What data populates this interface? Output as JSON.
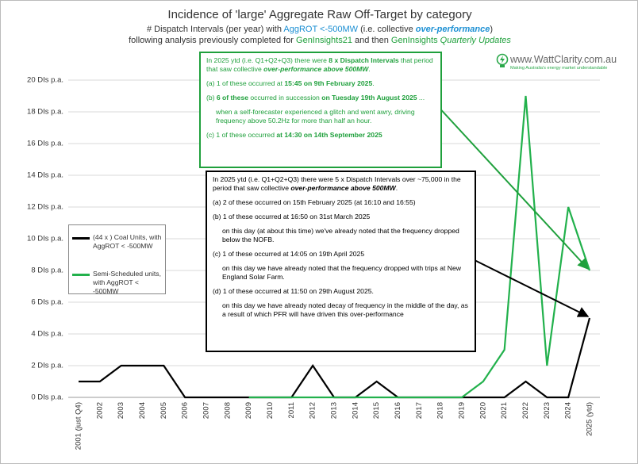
{
  "chart_data": {
    "type": "line",
    "title": "Incidence of 'large' Aggregate Raw Off-Target by category",
    "subtitle_lines": [
      [
        {
          "text": "# Dispatch Intervals (per year) with "
        },
        {
          "text": "AggROT <-500MW",
          "color": "#1b8fd3"
        },
        {
          "text": " (i.e. collective "
        },
        {
          "text": "over-performance",
          "color": "#1b8fd3",
          "bold": true,
          "italic": true
        },
        {
          "text": ")"
        }
      ],
      [
        {
          "text": "following analysis previously completed for "
        },
        {
          "text": "GenInsights21",
          "color": "#1fa03c"
        },
        {
          "text": " and then "
        },
        {
          "text": "GenInsights ",
          "color": "#1fa03c"
        },
        {
          "text": "Quarterly Updates",
          "color": "#1fa03c",
          "italic": true
        }
      ]
    ],
    "categories": [
      "2001 (just Q4)",
      "2002",
      "2003",
      "2004",
      "2005",
      "2006",
      "2007",
      "2008",
      "2009",
      "2010",
      "2011",
      "2012",
      "2013",
      "2014",
      "2015",
      "2016",
      "2017",
      "2018",
      "2019",
      "2020",
      "2021",
      "2022",
      "2023",
      "2024",
      "2025 (ytd)"
    ],
    "series": [
      {
        "name": "(44 x ) Coal Units, with AggROT < -500MW",
        "color": "#000000",
        "values": [
          1,
          1,
          2,
          2,
          2,
          0,
          0,
          0,
          0,
          0,
          0,
          2,
          0,
          0,
          1,
          0,
          0,
          0,
          0,
          0,
          0,
          1,
          0,
          0,
          5
        ]
      },
      {
        "name": "Semi-Scheduled units, with AggROT < -500MW",
        "color": "#22b14c",
        "values": [
          null,
          null,
          null,
          null,
          null,
          null,
          null,
          null,
          0,
          0,
          0,
          0,
          0,
          0,
          0,
          0,
          0,
          0,
          0,
          1,
          3,
          19,
          2,
          12,
          8
        ]
      }
    ],
    "ylim": [
      0,
      20
    ],
    "yticks": [
      {
        "value": 0,
        "label": "0 DIs p.a."
      },
      {
        "value": 2,
        "label": "2 DIs p.a."
      },
      {
        "value": 4,
        "label": "4 DIs p.a."
      },
      {
        "value": 6,
        "label": "6 DIs p.a."
      },
      {
        "value": 8,
        "label": "8 DIs p.a."
      },
      {
        "value": 10,
        "label": "10 DIs p.a."
      },
      {
        "value": 12,
        "label": "12 DIs p.a."
      },
      {
        "value": 14,
        "label": "14 DIs p.a."
      },
      {
        "value": 16,
        "label": "16 DIs p.a."
      },
      {
        "value": 18,
        "label": "18 DIs p.a."
      },
      {
        "value": 20,
        "label": "20 DIs p.a."
      }
    ],
    "grid": true,
    "legend_position": "left",
    "annotations": [
      {
        "color": "#1fa03c",
        "series": 1,
        "paragraphs": [
          {
            "parts": [
              {
                "text": "In 2025 ytd (i.e. Q1+Q2+Q3) there were "
              },
              {
                "text": "8 x Dispatch Intervals",
                "bold": true
              },
              {
                "text": " that period that saw collective "
              },
              {
                "text": "over-performance above 500MW",
                "bold": true,
                "italic": true
              },
              {
                "text": "."
              }
            ]
          },
          {
            "parts": [
              {
                "text": "(a)  1 of these occurred at "
              },
              {
                "text": "15:45 on 9th February 2025",
                "bold": true
              },
              {
                "text": "."
              }
            ]
          },
          {
            "parts": [
              {
                "text": "(b)  "
              },
              {
                "text": "6 of these",
                "bold": true
              },
              {
                "text": " occurred in succession "
              },
              {
                "text": "on Tuesday 19th August 2025",
                "bold": true
              },
              {
                "text": " ..."
              }
            ]
          },
          {
            "indent": true,
            "parts": [
              {
                "text": "when a self-forecaster experienced a glitch and went awry, driving frequency above 50.2Hz for more than half an hour."
              }
            ]
          },
          {
            "parts": [
              {
                "text": "(c)  1 of these occurred "
              },
              {
                "text": "at 14:30 on 14th September 2025",
                "bold": true
              }
            ]
          }
        ]
      },
      {
        "color": "#000000",
        "series": 0,
        "paragraphs": [
          {
            "parts": [
              {
                "text": "In 2025 ytd (i.e. Q1+Q2+Q3) there were 5 x Dispatch Intervals over ~75,000 in the period that saw collective "
              },
              {
                "text": "over-performance above 500MW",
                "bold": true,
                "italic": true
              },
              {
                "text": "."
              }
            ]
          },
          {
            "parts": [
              {
                "text": "(a)  2 of these occurred on 15th February 2025 (at 16:10 and 16:55)"
              }
            ]
          },
          {
            "parts": [
              {
                "text": "(b)  1 of these occurred at 16:50 on 31st March 2025"
              }
            ]
          },
          {
            "indent": true,
            "parts": [
              {
                "text": "on this day (at about this time) we've already noted that the frequency dropped below the NOFB."
              }
            ]
          },
          {
            "parts": [
              {
                "text": "(c)  1 of these occurred at 14:05 on 19th April 2025"
              }
            ]
          },
          {
            "indent": true,
            "parts": [
              {
                "text": "on this day we have already noted that the frequency dropped with trips at New England Solar Farm."
              }
            ]
          },
          {
            "parts": [
              {
                "text": "(d)  1 of these occurred at 11:50 on 29th August 2025."
              }
            ]
          },
          {
            "indent": true,
            "parts": [
              {
                "text": "on this day we have already noted decay of frequency in the middle of the day, as a result of which PFR will have driven this over-performance"
              }
            ]
          }
        ]
      }
    ]
  },
  "logo": {
    "text": "www.WattClarity.com.au",
    "tagline": "Making Australia's energy market understandable"
  }
}
